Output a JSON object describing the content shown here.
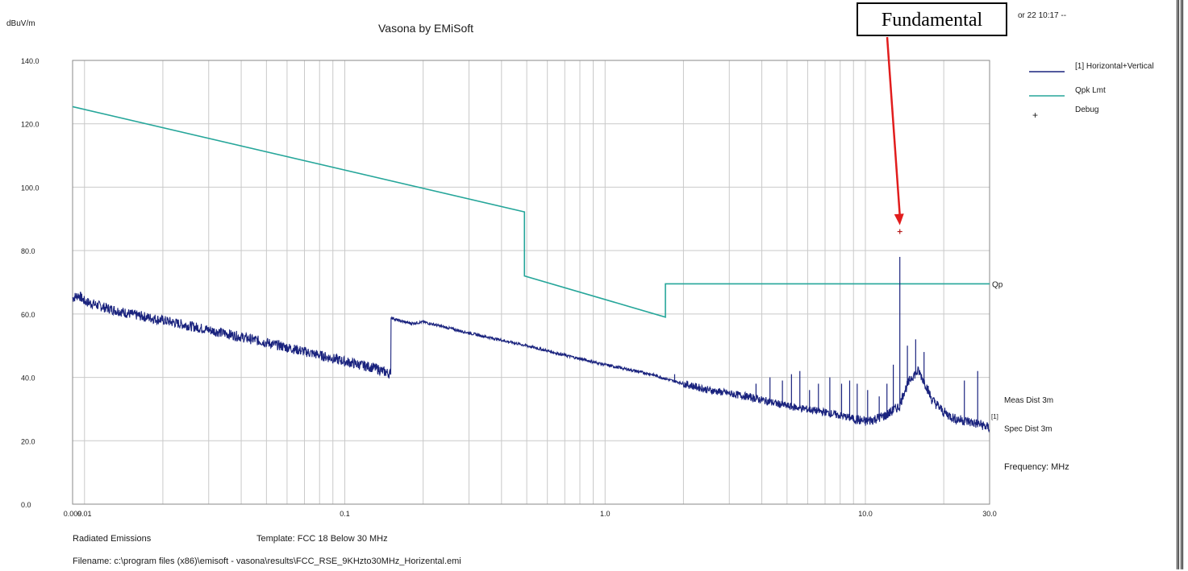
{
  "chart_data": {
    "type": "line",
    "title": "Vasona by EMiSoft",
    "ylabel": "dBuV/m",
    "xlabel": "Frequency: MHz",
    "x_scale": "log",
    "xlim": [
      0.009,
      30.0
    ],
    "ylim": [
      0.0,
      140.0
    ],
    "y_ticks": [
      "140.0",
      "120.0",
      "100.0",
      "80.0",
      "60.0",
      "40.0",
      "20.0",
      "0.0"
    ],
    "x_ticks": [
      {
        "label": "0.009",
        "value": 0.009
      },
      {
        "label": "0.01",
        "value": 0.01
      },
      {
        "label": "0.1",
        "value": 0.1
      },
      {
        "label": "1.0",
        "value": 1.0
      },
      {
        "label": "10.0",
        "value": 10.0
      },
      {
        "label": "30.0",
        "value": 30.0
      }
    ],
    "header_fragment": "or 22 10:17 --",
    "grid": true,
    "legend_position": "right",
    "series": [
      {
        "name": "[1] Horizontal+Vertical",
        "color": "#1a237e",
        "x": [
          0.009,
          0.0095,
          0.01,
          0.012,
          0.015,
          0.02,
          0.03,
          0.05,
          0.08,
          0.1,
          0.13,
          0.15,
          0.15,
          0.16,
          0.18,
          0.2,
          0.3,
          0.5,
          0.7,
          1.0,
          1.5,
          1.8,
          2.5,
          3.5,
          5.0,
          7.0,
          9.0,
          10.0,
          11.0,
          12.0,
          13.0,
          13.56,
          14.0,
          15.0,
          16.0,
          17.0,
          18.0,
          20.0,
          22.0,
          25.0,
          28.0,
          30.0
        ],
        "y": [
          65.0,
          66.0,
          64.0,
          62.0,
          60.0,
          58.0,
          55.0,
          51.0,
          47.0,
          45.0,
          43.0,
          41.0,
          59.0,
          58.0,
          57.0,
          57.5,
          54.0,
          50.0,
          47.0,
          44.0,
          41.0,
          39.0,
          36.0,
          34.0,
          31.0,
          29.0,
          27.0,
          26.0,
          27.0,
          28.0,
          30.0,
          31.0,
          35.0,
          40.0,
          42.0,
          38.0,
          33.0,
          29.0,
          27.0,
          26.0,
          25.0,
          24.0
        ]
      },
      {
        "name": "Qpk Lmt",
        "color": "#26a69a",
        "x": [
          0.009,
          0.49,
          0.49,
          1.705,
          1.705,
          30.0
        ],
        "y": [
          125.4,
          92.2,
          72.0,
          59.0,
          69.5,
          69.5
        ]
      },
      {
        "name": "Debug",
        "color": "#b71c1c",
        "marker": "+",
        "x": [
          13.56
        ],
        "y": [
          86.0
        ]
      }
    ],
    "spikes": {
      "x": [
        1.85,
        3.2,
        3.8,
        4.3,
        4.8,
        5.2,
        5.6,
        6.1,
        6.6,
        7.3,
        8.1,
        8.7,
        9.3,
        10.2,
        11.3,
        12.1,
        12.8,
        13.56,
        14.5,
        15.6,
        16.8,
        24.0,
        27.0
      ],
      "y": [
        41.0,
        35.0,
        38.0,
        40.0,
        39.0,
        41.0,
        42.0,
        36.0,
        38.0,
        40.0,
        38.0,
        39.0,
        38.0,
        36.0,
        34.0,
        38.0,
        44.0,
        78.0,
        50.0,
        52.0,
        48.0,
        39.0,
        42.0
      ]
    },
    "right_annotations": [
      {
        "label": "Qp",
        "y": 69.5
      },
      {
        "label": "Meas Dist 3m",
        "y": 33.0
      },
      {
        "label": "[1]",
        "y": 28.0
      },
      {
        "label": "Spec Dist 3m",
        "y": 24.0
      }
    ]
  },
  "footer": {
    "report_type": "Radiated Emissions",
    "template": "Template: FCC 18 Below 30 MHz",
    "filename": "Filename: c:\\program files (x86)\\emisoft - vasona\\results\\FCC_RSE_9KHzto30MHz_Horizental.emi"
  },
  "callout": {
    "label": "Fundamental",
    "target_x": 13.56,
    "target_y": 88.0,
    "color": "#e11d1d"
  }
}
